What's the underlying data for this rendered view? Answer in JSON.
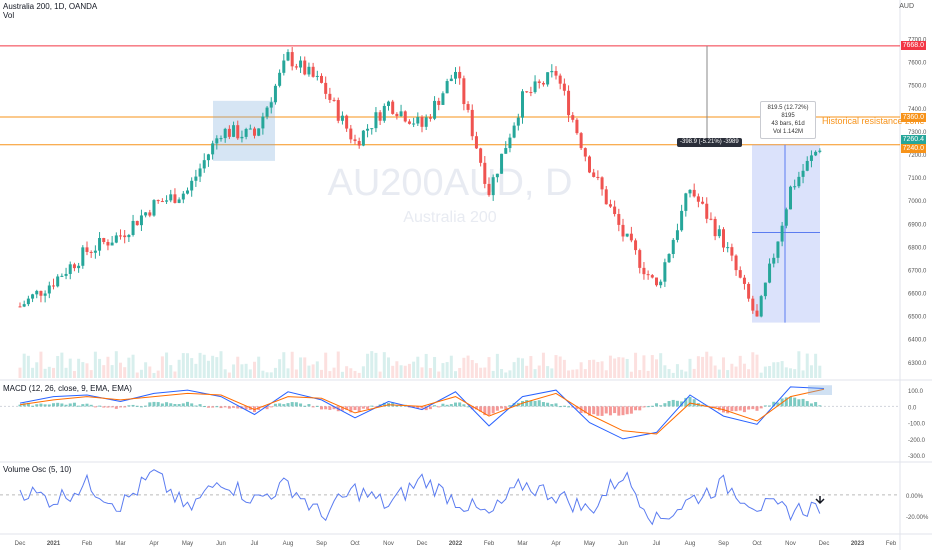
{
  "header": {
    "symbol_line": "Australia 200, 1D, OANDA",
    "vol_label": "Vol",
    "macd_label": "MACD (12, 26, close, 9, EMA, EMA)",
    "volosc_label": "Volume Osc (5, 10)",
    "currency": "AUD"
  },
  "watermark": {
    "ticker": "AU200AUD, D",
    "name": "Australia 200"
  },
  "annotations": {
    "resistance_label": "Historical resistance zone",
    "measure_up": [
      "819.5 (12.72%) 8195",
      "43 bars, 61d",
      "Vol 1.142M"
    ],
    "measure_down": "-398.9 (-5.21%) -3989"
  },
  "price_tags": [
    {
      "label": "7668.0",
      "value": 7668,
      "color": "#f23645"
    },
    {
      "label": "7360.0",
      "value": 7360,
      "color": "#f7931a"
    },
    {
      "label": "7260.4",
      "value": 7262,
      "color": "#26a69a"
    },
    {
      "label": "7240.0",
      "value": 7225,
      "color": "#f7931a"
    }
  ],
  "colors": {
    "up": "#26a69a",
    "down": "#ef5350",
    "red_line": "#f23645",
    "orange_line": "#f7931a",
    "macd": "#2962ff",
    "signal": "#ff6d00",
    "osc": "#5b7cf0"
  },
  "chart_data": {
    "type": "line",
    "instrument": "Australia 200 (AU200AUD), daily, OANDA",
    "x": [
      "Dec 2020",
      "2021",
      "Feb",
      "Mar",
      "Apr",
      "May",
      "Jun",
      "Jul",
      "Aug",
      "Sep",
      "Oct",
      "Nov",
      "Dec",
      "2022",
      "Feb",
      "Mar",
      "Apr",
      "May",
      "Jun",
      "Jul",
      "Aug",
      "Sep",
      "Oct",
      "Nov",
      "Dec",
      "2023",
      "Feb"
    ],
    "series": [
      {
        "values": [
          6540,
          6650,
          6780,
          6850,
          6980,
          7040,
          7300,
          7280,
          7620,
          7500,
          7250,
          7420,
          7320,
          7560,
          7040,
          7440,
          7550,
          7150,
          6850,
          6620,
          7050,
          6820,
          6480,
          7050,
          7260,
          null,
          null
        ]
      }
    ],
    "price_axis": {
      "ticks": [
        6300,
        6400,
        6500,
        6600,
        6700,
        6800,
        6900,
        7000,
        7100,
        7200,
        7300,
        7400,
        7500,
        7600,
        7700
      ],
      "range": [
        6230,
        7780
      ]
    },
    "horizontal_levels": [
      7668,
      7360,
      7240
    ],
    "macd": {
      "ticks": [
        -300,
        -200,
        -100,
        0,
        100
      ],
      "macd": [
        20,
        60,
        70,
        30,
        80,
        100,
        60,
        -50,
        90,
        40,
        -70,
        30,
        -20,
        90,
        -120,
        60,
        100,
        -100,
        -200,
        -160,
        70,
        -60,
        -110,
        120,
        110,
        null,
        null
      ],
      "signal": [
        10,
        40,
        60,
        40,
        60,
        80,
        70,
        -20,
        60,
        50,
        -40,
        10,
        0,
        60,
        -60,
        20,
        80,
        -50,
        -150,
        -170,
        20,
        -20,
        -90,
        60,
        105,
        null,
        null
      ]
    },
    "volume_osc": {
      "ticks": [
        "0.00%",
        "-20.00%"
      ],
      "values": [
        5,
        -5,
        10,
        -10,
        20,
        -15,
        15,
        -5,
        10,
        -20,
        5,
        -10,
        15,
        -5,
        -20,
        10,
        0,
        -15,
        20,
        -25,
        -5,
        10,
        -10,
        -15,
        -10,
        null,
        null
      ]
    },
    "x_tick_labels": [
      "Dec",
      "2021",
      "Feb",
      "Mar",
      "Apr",
      "May",
      "Jun",
      "Jul",
      "Aug",
      "Sep",
      "Oct",
      "Nov",
      "Dec",
      "2022",
      "Feb",
      "Mar",
      "Apr",
      "May",
      "Jun",
      "Jul",
      "Aug",
      "Sep",
      "Oct",
      "Nov",
      "Dec",
      "2023",
      "Feb"
    ]
  }
}
